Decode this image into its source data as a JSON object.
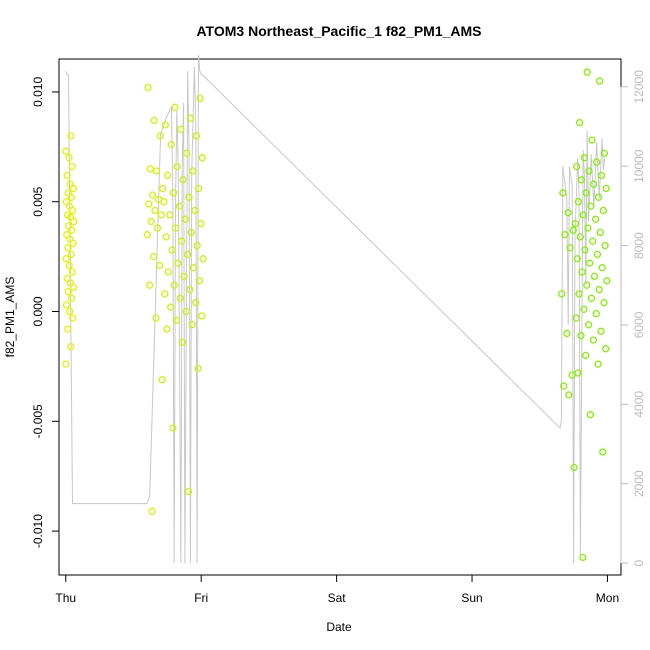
{
  "chart_data": {
    "type": "scatter",
    "title": "ATOM3 Northeast_Pacific_1 f82_PM1_AMS",
    "xlabel": "Date",
    "ylabel": "f82_PM1_AMS",
    "x_ticks": [
      "Thu",
      "Fri",
      "Sat",
      "Sun",
      "Mon"
    ],
    "xlim_days": [
      -0.05,
      4.1
    ],
    "ylim": [
      -0.012,
      0.0115
    ],
    "y_ticks": [
      -0.01,
      -0.005,
      0.0,
      0.005,
      0.01
    ],
    "y_tick_labels": [
      "-0.010",
      "-0.005",
      "0.000",
      "0.005",
      "0.010"
    ],
    "secondary_axis": {
      "ylim": [
        -300,
        12700
      ],
      "ticks": [
        0,
        2000,
        4000,
        6000,
        8000,
        10000,
        12000
      ],
      "tick_labels": [
        "0",
        "2000",
        "4000",
        "6000",
        "8000",
        "10000",
        "12000"
      ],
      "color": "#bbbbbb"
    },
    "color_start": "#e3f500",
    "color_end": "#80f200",
    "grid": false,
    "scatter_groups": [
      {
        "x_range": [
          0.0,
          0.06
        ],
        "y_values": [
          -0.0024,
          -0.0016,
          -0.0008,
          -0.0003,
          0.0,
          0.0003,
          0.0006,
          0.0009,
          0.0011,
          0.0013,
          0.0015,
          0.0018,
          0.0021,
          0.0024,
          0.0026,
          0.0029,
          0.0031,
          0.0033,
          0.0035,
          0.0037,
          0.0039,
          0.0041,
          0.0043,
          0.0044,
          0.0046,
          0.0048,
          0.005,
          0.0052,
          0.0054,
          0.0056,
          0.0058,
          0.0062,
          0.0066,
          0.007,
          0.0073,
          0.008
        ]
      },
      {
        "x_range": [
          0.6,
          0.72
        ],
        "y_values": [
          -0.0091,
          -0.0031,
          -0.0003,
          0.0012,
          0.0021,
          0.0025,
          0.0035,
          0.0038,
          0.0041,
          0.0044,
          0.0046,
          0.0049,
          0.0051,
          0.0053,
          0.0056,
          0.0064,
          0.0065,
          0.008,
          0.0087,
          0.0102
        ]
      },
      {
        "x_range": [
          0.72,
          1.02
        ],
        "y_values": [
          -0.0082,
          -0.0053,
          -0.0026,
          -0.0014,
          -0.0008,
          -0.0006,
          -0.0004,
          -0.0002,
          0.0,
          0.0002,
          0.0004,
          0.0006,
          0.0008,
          0.001,
          0.0012,
          0.0014,
          0.0016,
          0.0018,
          0.002,
          0.0022,
          0.0024,
          0.0026,
          0.0028,
          0.003,
          0.0032,
          0.0034,
          0.0036,
          0.0038,
          0.004,
          0.0042,
          0.0044,
          0.0046,
          0.0048,
          0.005,
          0.0052,
          0.0054,
          0.0056,
          0.006,
          0.0062,
          0.0064,
          0.0066,
          0.007,
          0.0072,
          0.0076,
          0.008,
          0.0083,
          0.0085,
          0.0088,
          0.0093,
          0.0097
        ]
      },
      {
        "x_range": [
          3.66,
          3.76
        ],
        "y_values": [
          -0.0071,
          -0.0038,
          -0.0034,
          -0.0029,
          -0.001,
          0.0008,
          0.0029,
          0.0035,
          0.0037,
          0.0045,
          0.0054
        ]
      },
      {
        "x_range": [
          3.76,
          4.0
        ],
        "y_values": [
          -0.0112,
          -0.0064,
          -0.0047,
          -0.0028,
          -0.0024,
          -0.002,
          -0.0017,
          -0.0013,
          -0.0011,
          -0.0009,
          -0.0006,
          -0.0003,
          -0.0001,
          0.0001,
          0.0004,
          0.0006,
          0.0008,
          0.001,
          0.0012,
          0.0014,
          0.0016,
          0.0018,
          0.002,
          0.0022,
          0.0024,
          0.0026,
          0.0028,
          0.003,
          0.0032,
          0.0034,
          0.0036,
          0.0038,
          0.004,
          0.0042,
          0.0044,
          0.0046,
          0.0048,
          0.005,
          0.0052,
          0.0054,
          0.0056,
          0.0058,
          0.006,
          0.0062,
          0.0064,
          0.0066,
          0.0068,
          0.007,
          0.0072,
          0.0078,
          0.0086,
          0.0105,
          0.0109
        ]
      }
    ],
    "secondary_series": {
      "name": "",
      "x": [
        0.0,
        0.01,
        0.02,
        0.05,
        0.6,
        0.62,
        0.7,
        0.74,
        0.78,
        0.79,
        0.8,
        0.81,
        0.82,
        0.83,
        0.85,
        0.86,
        0.87,
        0.88,
        0.9,
        0.91,
        0.92,
        0.93,
        0.95,
        0.96,
        0.97,
        0.98,
        0.99,
        1.0,
        1.01,
        3.65,
        3.66,
        3.67,
        3.7,
        3.71,
        3.72,
        3.74,
        3.75,
        3.76,
        3.78,
        3.79,
        3.8,
        3.82,
        3.83,
        3.84,
        3.85,
        3.86,
        3.88,
        3.9,
        3.92,
        3.94,
        3.96,
        3.97,
        3.98
      ],
      "y": [
        12400,
        12300,
        12300,
        1500,
        1500,
        1700,
        10800,
        11200,
        11500,
        9500,
        0,
        9000,
        11400,
        10000,
        0,
        10000,
        11600,
        0,
        12400,
        10500,
        0,
        9800,
        12500,
        11000,
        0,
        12800,
        12400,
        12300,
        12300,
        3400,
        3600,
        10000,
        9200,
        6000,
        10000,
        9500,
        0,
        8300,
        10200,
        9400,
        200,
        10400,
        9800,
        7000,
        10900,
        8600,
        10300,
        9000,
        10600,
        9200,
        10700,
        9900,
        10200
      ]
    }
  }
}
